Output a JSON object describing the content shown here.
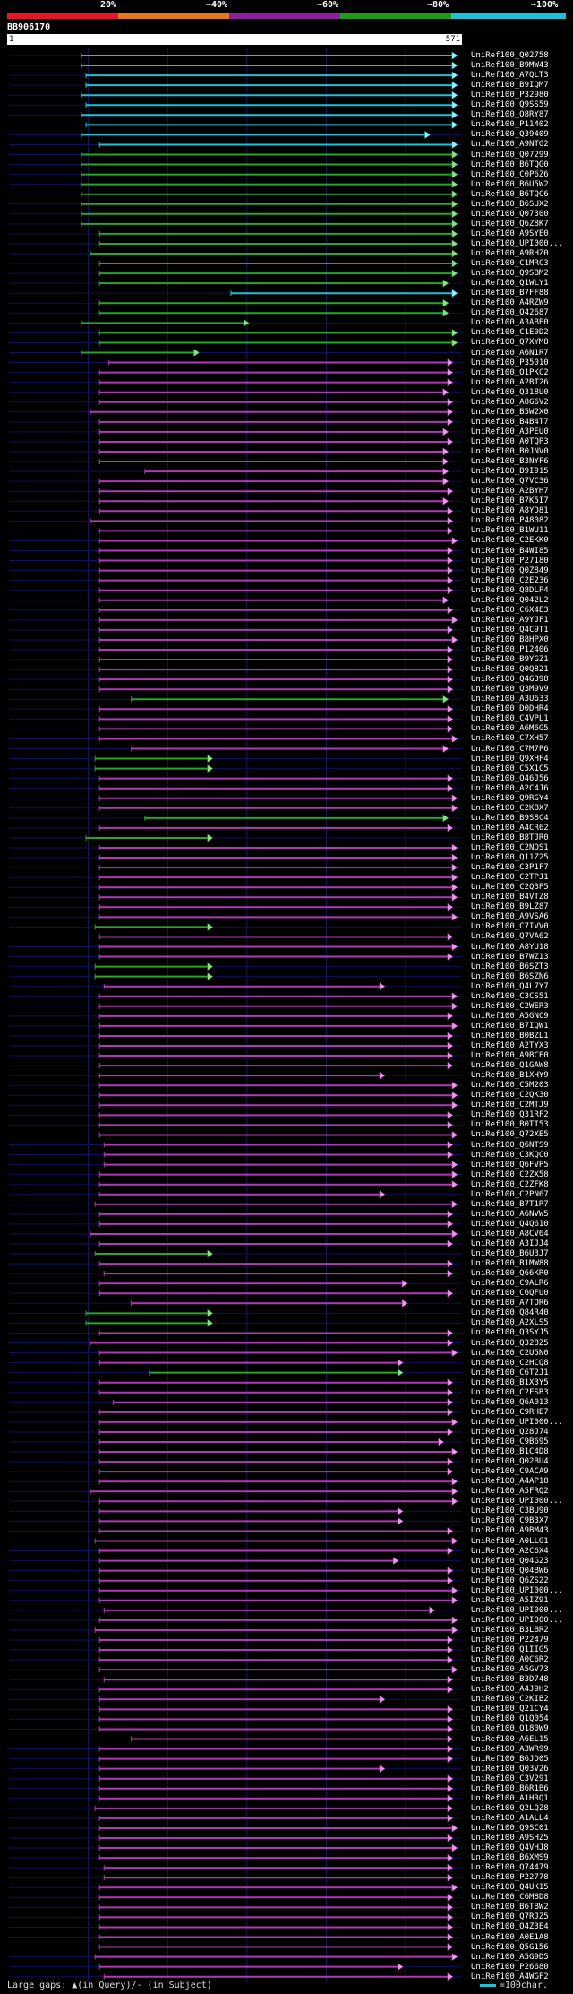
{
  "legend": [
    {
      "label": "20%",
      "color": "#e8152a"
    },
    {
      "label": "~40%",
      "color": "#e0791a"
    },
    {
      "label": "~60%",
      "color": "#8e1e9c"
    },
    {
      "label": "~80%",
      "color": "#1f9a1a"
    },
    {
      "label": "~100%",
      "color": "#1ec2d6"
    }
  ],
  "query": {
    "id": "BB906170",
    "start": "1",
    "end": "571",
    "length": 571
  },
  "colors": {
    "cyan": "#1ec2d6",
    "green": "#2aa52a",
    "purple": "#b03ab5",
    "pink": "#e79be8",
    "lightgreen": "#8ee08e",
    "lightcyan": "#9bf0fa"
  },
  "footer": {
    "gaps": "Large gaps: ▲(in Query)/- (in Subject)",
    "scale": "=100char."
  },
  "hits": [
    {
      "id": "UniRef100_Q02758",
      "c": "c",
      "s": 0.16,
      "e": 0.99
    },
    {
      "id": "UniRef100_B9MW43",
      "c": "c",
      "s": 0.16,
      "e": 0.99
    },
    {
      "id": "UniRef100_A7QLT3",
      "c": "c",
      "s": 0.17,
      "e": 0.99
    },
    {
      "id": "UniRef100_B9IQM7",
      "c": "c",
      "s": 0.17,
      "e": 0.99
    },
    {
      "id": "UniRef100_P32980",
      "c": "c",
      "s": 0.16,
      "e": 0.99
    },
    {
      "id": "UniRef100_Q9SS59",
      "c": "c",
      "s": 0.17,
      "e": 0.99
    },
    {
      "id": "UniRef100_Q8RY87",
      "c": "c",
      "s": 0.16,
      "e": 0.99
    },
    {
      "id": "UniRef100_P11402",
      "c": "c",
      "s": 0.17,
      "e": 0.99
    },
    {
      "id": "UniRef100_Q39409",
      "c": "c",
      "s": 0.16,
      "e": 0.93
    },
    {
      "id": "UniRef100_A9NTG2",
      "c": "c",
      "s": 0.2,
      "e": 0.99
    },
    {
      "id": "UniRef100_Q07299",
      "c": "g",
      "s": 0.16,
      "e": 0.99
    },
    {
      "id": "UniRef100_B6TQG0",
      "c": "g",
      "s": 0.16,
      "e": 0.99
    },
    {
      "id": "UniRef100_C0P6Z6",
      "c": "g",
      "s": 0.16,
      "e": 0.99
    },
    {
      "id": "UniRef100_B6U5W2",
      "c": "g",
      "s": 0.16,
      "e": 0.99
    },
    {
      "id": "UniRef100_B6TQC6",
      "c": "g",
      "s": 0.16,
      "e": 0.99
    },
    {
      "id": "UniRef100_B6SUX2",
      "c": "g",
      "s": 0.16,
      "e": 0.99
    },
    {
      "id": "UniRef100_Q07300",
      "c": "g",
      "s": 0.16,
      "e": 0.99
    },
    {
      "id": "UniRef100_Q6Z8K7",
      "c": "g",
      "s": 0.16,
      "e": 0.99
    },
    {
      "id": "UniRef100_A9SYE0",
      "c": "g",
      "s": 0.2,
      "e": 0.99
    },
    {
      "id": "UniRef100_UPI000...",
      "c": "g",
      "s": 0.2,
      "e": 0.99
    },
    {
      "id": "UniRef100_A9RHZ0",
      "c": "g",
      "s": 0.18,
      "e": 0.99
    },
    {
      "id": "UniRef100_C1MRC3",
      "c": "g",
      "s": 0.2,
      "e": 0.99
    },
    {
      "id": "UniRef100_Q9SBM2",
      "c": "g",
      "s": 0.2,
      "e": 0.99
    },
    {
      "id": "UniRef100_Q1WLY1",
      "c": "g",
      "s": 0.2,
      "e": 0.97
    },
    {
      "id": "UniRef100_B7FF88",
      "c": "c",
      "s": 0.49,
      "e": 0.99
    },
    {
      "id": "UniRef100_A4RZW9",
      "c": "g",
      "s": 0.2,
      "e": 0.97
    },
    {
      "id": "UniRef100_Q42687",
      "c": "g",
      "s": 0.2,
      "e": 0.97
    },
    {
      "id": "UniRef100_A3ABE0",
      "c": "g",
      "s": 0.16,
      "e": 0.53
    },
    {
      "id": "UniRef100_C1E0D2",
      "c": "g",
      "s": 0.2,
      "e": 0.99
    },
    {
      "id": "UniRef100_Q7XYM8",
      "c": "g",
      "s": 0.2,
      "e": 0.99
    },
    {
      "id": "UniRef100_A6N1R7",
      "c": "g",
      "s": 0.16,
      "e": 0.42
    },
    {
      "id": "UniRef100_P35010",
      "c": "p",
      "s": 0.22,
      "e": 0.98
    },
    {
      "id": "UniRef100_Q1PKC2",
      "c": "p",
      "s": 0.2,
      "e": 0.98
    },
    {
      "id": "UniRef100_A2BT26",
      "c": "p",
      "s": 0.2,
      "e": 0.98
    },
    {
      "id": "UniRef100_Q318U0",
      "c": "p",
      "s": 0.2,
      "e": 0.97
    },
    {
      "id": "UniRef100_A8G6V2",
      "c": "p",
      "s": 0.2,
      "e": 0.98
    },
    {
      "id": "UniRef100_B5W2X0",
      "c": "p",
      "s": 0.18,
      "e": 0.98
    },
    {
      "id": "UniRef100_B4B4T7",
      "c": "p",
      "s": 0.2,
      "e": 0.98
    },
    {
      "id": "UniRef100_A3PEU0",
      "c": "p",
      "s": 0.2,
      "e": 0.97
    },
    {
      "id": "UniRef100_A0TQP3",
      "c": "p",
      "s": 0.2,
      "e": 0.98
    },
    {
      "id": "UniRef100_B0JNV0",
      "c": "p",
      "s": 0.2,
      "e": 0.97
    },
    {
      "id": "UniRef100_B3NYF6",
      "c": "p",
      "s": 0.2,
      "e": 0.97
    },
    {
      "id": "UniRef100_B9I915",
      "c": "p",
      "s": 0.3,
      "e": 0.97
    },
    {
      "id": "UniRef100_Q7VC36",
      "c": "p",
      "s": 0.2,
      "e": 0.97
    },
    {
      "id": "UniRef100_A2BYH7",
      "c": "p",
      "s": 0.2,
      "e": 0.98
    },
    {
      "id": "UniRef100_B7K5I7",
      "c": "p",
      "s": 0.2,
      "e": 0.97
    },
    {
      "id": "UniRef100_A8YD81",
      "c": "p",
      "s": 0.2,
      "e": 0.98
    },
    {
      "id": "UniRef100_P48082",
      "c": "p",
      "s": 0.18,
      "e": 0.98
    },
    {
      "id": "UniRef100_B1WU11",
      "c": "p",
      "s": 0.2,
      "e": 0.98
    },
    {
      "id": "UniRef100_C2EKK0",
      "c": "p",
      "s": 0.2,
      "e": 0.99
    },
    {
      "id": "UniRef100_B4WI85",
      "c": "p",
      "s": 0.2,
      "e": 0.98
    },
    {
      "id": "UniRef100_P27180",
      "c": "p",
      "s": 0.2,
      "e": 0.98
    },
    {
      "id": "UniRef100_Q0Z849",
      "c": "p",
      "s": 0.2,
      "e": 0.98
    },
    {
      "id": "UniRef100_C2E236",
      "c": "p",
      "s": 0.2,
      "e": 0.98
    },
    {
      "id": "UniRef100_Q8DLP4",
      "c": "p",
      "s": 0.2,
      "e": 0.98
    },
    {
      "id": "UniRef100_Q042L2",
      "c": "p",
      "s": 0.2,
      "e": 0.97
    },
    {
      "id": "UniRef100_C6X4E3",
      "c": "p",
      "s": 0.2,
      "e": 0.98
    },
    {
      "id": "UniRef100_A9YJF1",
      "c": "p",
      "s": 0.2,
      "e": 0.99
    },
    {
      "id": "UniRef100_Q4C9T1",
      "c": "p",
      "s": 0.2,
      "e": 0.98
    },
    {
      "id": "UniRef100_B8HPX0",
      "c": "p",
      "s": 0.2,
      "e": 0.99
    },
    {
      "id": "UniRef100_P12406",
      "c": "p",
      "s": 0.2,
      "e": 0.98
    },
    {
      "id": "UniRef100_B9YGZ1",
      "c": "p",
      "s": 0.2,
      "e": 0.98
    },
    {
      "id": "UniRef100_Q0Q821",
      "c": "p",
      "s": 0.2,
      "e": 0.98
    },
    {
      "id": "UniRef100_Q4G398",
      "c": "p",
      "s": 0.2,
      "e": 0.98
    },
    {
      "id": "UniRef100_Q3M9V9",
      "c": "p",
      "s": 0.2,
      "e": 0.98
    },
    {
      "id": "UniRef100_A3U633",
      "c": "g",
      "s": 0.27,
      "e": 0.97
    },
    {
      "id": "UniRef100_D0DHR4",
      "c": "p",
      "s": 0.2,
      "e": 0.98
    },
    {
      "id": "UniRef100_C4VPL1",
      "c": "p",
      "s": 0.2,
      "e": 0.98
    },
    {
      "id": "UniRef100_A6M6G5",
      "c": "p",
      "s": 0.2,
      "e": 0.98
    },
    {
      "id": "UniRef100_C7XH57",
      "c": "p",
      "s": 0.2,
      "e": 0.99
    },
    {
      "id": "UniRef100_C7M7P6",
      "c": "p",
      "s": 0.27,
      "e": 0.97
    },
    {
      "id": "UniRef100_Q9XHF4",
      "c": "g",
      "s": 0.19,
      "e": 0.45
    },
    {
      "id": "UniRef100_C5X1C5",
      "c": "g",
      "s": 0.19,
      "e": 0.45
    },
    {
      "id": "UniRef100_Q46J56",
      "c": "p",
      "s": 0.2,
      "e": 0.98
    },
    {
      "id": "UniRef100_A2C4J6",
      "c": "p",
      "s": 0.2,
      "e": 0.98
    },
    {
      "id": "UniRef100_Q9RGY4",
      "c": "p",
      "s": 0.2,
      "e": 0.99
    },
    {
      "id": "UniRef100_C2KBX7",
      "c": "p",
      "s": 0.2,
      "e": 0.99
    },
    {
      "id": "UniRef100_B9S8C4",
      "c": "g",
      "s": 0.3,
      "e": 0.97
    },
    {
      "id": "UniRef100_A4CR62",
      "c": "p",
      "s": 0.2,
      "e": 0.98
    },
    {
      "id": "UniRef100_B8TJR0",
      "c": "g",
      "s": 0.17,
      "e": 0.45
    },
    {
      "id": "UniRef100_C2NQS1",
      "c": "p",
      "s": 0.2,
      "e": 0.99
    },
    {
      "id": "UniRef100_Q11Z25",
      "c": "p",
      "s": 0.2,
      "e": 0.99
    },
    {
      "id": "UniRef100_C3P1F7",
      "c": "p",
      "s": 0.2,
      "e": 0.99
    },
    {
      "id": "UniRef100_C2TPJ1",
      "c": "p",
      "s": 0.2,
      "e": 0.99
    },
    {
      "id": "UniRef100_C2Q3P5",
      "c": "p",
      "s": 0.2,
      "e": 0.99
    },
    {
      "id": "UniRef100_B4VTZ8",
      "c": "p",
      "s": 0.2,
      "e": 0.99
    },
    {
      "id": "UniRef100_B9LZ87",
      "c": "p",
      "s": 0.2,
      "e": 0.98
    },
    {
      "id": "UniRef100_A9VSA6",
      "c": "p",
      "s": 0.2,
      "e": 0.99
    },
    {
      "id": "UniRef100_C7IVV0",
      "c": "g",
      "s": 0.19,
      "e": 0.45
    },
    {
      "id": "UniRef100_Q7VA62",
      "c": "p",
      "s": 0.2,
      "e": 0.98
    },
    {
      "id": "UniRef100_A8YU18",
      "c": "p",
      "s": 0.2,
      "e": 0.99
    },
    {
      "id": "UniRef100_B7WZ13",
      "c": "p",
      "s": 0.2,
      "e": 0.98
    },
    {
      "id": "UniRef100_B6SZT3",
      "c": "g",
      "s": 0.19,
      "e": 0.45
    },
    {
      "id": "UniRef100_B6SZN6",
      "c": "g",
      "s": 0.19,
      "e": 0.45
    },
    {
      "id": "UniRef100_Q4L7Y7",
      "c": "p",
      "s": 0.21,
      "e": 0.83
    },
    {
      "id": "UniRef100_C3CS51",
      "c": "p",
      "s": 0.2,
      "e": 0.99
    },
    {
      "id": "UniRef100_C2WER3",
      "c": "p",
      "s": 0.2,
      "e": 0.99
    },
    {
      "id": "UniRef100_A5GNC9",
      "c": "p",
      "s": 0.2,
      "e": 0.98
    },
    {
      "id": "UniRef100_B7IQW1",
      "c": "p",
      "s": 0.2,
      "e": 0.99
    },
    {
      "id": "UniRef100_B0BZL1",
      "c": "p",
      "s": 0.2,
      "e": 0.98
    },
    {
      "id": "UniRef100_A2TYX3",
      "c": "p",
      "s": 0.2,
      "e": 0.98
    },
    {
      "id": "UniRef100_A9BCE0",
      "c": "p",
      "s": 0.2,
      "e": 0.98
    },
    {
      "id": "UniRef100_Q1GAW8",
      "c": "p",
      "s": 0.2,
      "e": 0.98
    },
    {
      "id": "UniRef100_B1XHY9",
      "c": "p",
      "s": 0.2,
      "e": 0.83
    },
    {
      "id": "UniRef100_C5M203",
      "c": "p",
      "s": 0.2,
      "e": 0.99
    },
    {
      "id": "UniRef100_C2QK30",
      "c": "p",
      "s": 0.2,
      "e": 0.99
    },
    {
      "id": "UniRef100_C2MTJ9",
      "c": "p",
      "s": 0.2,
      "e": 0.99
    },
    {
      "id": "UniRef100_Q31RF2",
      "c": "p",
      "s": 0.2,
      "e": 0.98
    },
    {
      "id": "UniRef100_B0TI53",
      "c": "p",
      "s": 0.2,
      "e": 0.98
    },
    {
      "id": "UniRef100_Q72XE5",
      "c": "p",
      "s": 0.2,
      "e": 0.99
    },
    {
      "id": "UniRef100_Q6NTS9",
      "c": "p",
      "s": 0.21,
      "e": 0.98
    },
    {
      "id": "UniRef100_C3KQC0",
      "c": "p",
      "s": 0.21,
      "e": 0.98
    },
    {
      "id": "UniRef100_Q6FVP5",
      "c": "p",
      "s": 0.21,
      "e": 0.99
    },
    {
      "id": "UniRef100_C2ZX58",
      "c": "p",
      "s": 0.2,
      "e": 0.99
    },
    {
      "id": "UniRef100_C2ZFK8",
      "c": "p",
      "s": 0.2,
      "e": 0.99
    },
    {
      "id": "UniRef100_C2PN67",
      "c": "p",
      "s": 0.2,
      "e": 0.83
    },
    {
      "id": "UniRef100_B7T1R7",
      "c": "p",
      "s": 0.19,
      "e": 0.99
    },
    {
      "id": "UniRef100_A6NVW5",
      "c": "p",
      "s": 0.2,
      "e": 0.98
    },
    {
      "id": "UniRef100_Q4Q610",
      "c": "p",
      "s": 0.2,
      "e": 0.98
    },
    {
      "id": "UniRef100_A8CV64",
      "c": "p",
      "s": 0.18,
      "e": 0.99
    },
    {
      "id": "UniRef100_A3IJJ4",
      "c": "p",
      "s": 0.2,
      "e": 0.98
    },
    {
      "id": "UniRef100_B6U3J7",
      "c": "g",
      "s": 0.19,
      "e": 0.45
    },
    {
      "id": "UniRef100_B1MW88",
      "c": "p",
      "s": 0.2,
      "e": 0.98
    },
    {
      "id": "UniRef100_Q66KR0",
      "c": "p",
      "s": 0.21,
      "e": 0.98
    },
    {
      "id": "UniRef100_C9ALR6",
      "c": "p",
      "s": 0.2,
      "e": 0.88
    },
    {
      "id": "UniRef100_C6QFU0",
      "c": "p",
      "s": 0.2,
      "e": 0.98
    },
    {
      "id": "UniRef100_A7TOR6",
      "c": "p",
      "s": 0.27,
      "e": 0.88
    },
    {
      "id": "UniRef100_Q84R40",
      "c": "g",
      "s": 0.17,
      "e": 0.45
    },
    {
      "id": "UniRef100_A2XLS5",
      "c": "g",
      "s": 0.17,
      "e": 0.45
    },
    {
      "id": "UniRef100_Q3SYJ5",
      "c": "p",
      "s": 0.2,
      "e": 0.98
    },
    {
      "id": "UniRef100_Q328Z5",
      "c": "p",
      "s": 0.18,
      "e": 0.98
    },
    {
      "id": "UniRef100_C2U5N0",
      "c": "p",
      "s": 0.2,
      "e": 0.99
    },
    {
      "id": "UniRef100_C2HCQ8",
      "c": "p",
      "s": 0.2,
      "e": 0.87
    },
    {
      "id": "UniRef100_C6T2J1",
      "c": "g",
      "s": 0.31,
      "e": 0.87
    },
    {
      "id": "UniRef100_B1X3Y5",
      "c": "p",
      "s": 0.2,
      "e": 0.98
    },
    {
      "id": "UniRef100_C2FSB3",
      "c": "p",
      "s": 0.2,
      "e": 0.98
    },
    {
      "id": "UniRef100_Q6A013",
      "c": "p",
      "s": 0.23,
      "e": 0.98
    },
    {
      "id": "UniRef100_C9RHE7",
      "c": "p",
      "s": 0.2,
      "e": 0.98
    },
    {
      "id": "UniRef100_UPI000...",
      "c": "p",
      "s": 0.2,
      "e": 0.99
    },
    {
      "id": "UniRef100_Q28J74",
      "c": "p",
      "s": 0.2,
      "e": 0.98
    },
    {
      "id": "UniRef100_C9B695",
      "c": "p",
      "s": 0.2,
      "e": 0.96
    },
    {
      "id": "UniRef100_B1C4D8",
      "c": "p",
      "s": 0.2,
      "e": 0.99
    },
    {
      "id": "UniRef100_Q02BU4",
      "c": "p",
      "s": 0.2,
      "e": 0.98
    },
    {
      "id": "UniRef100_C9ACA9",
      "c": "p",
      "s": 0.2,
      "e": 0.98
    },
    {
      "id": "UniRef100_A4AP18",
      "c": "p",
      "s": 0.2,
      "e": 0.99
    },
    {
      "id": "UniRef100_A5FRQ2",
      "c": "p",
      "s": 0.18,
      "e": 0.99
    },
    {
      "id": "UniRef100_UPI000...",
      "c": "p",
      "s": 0.2,
      "e": 0.99
    },
    {
      "id": "UniRef100_C3BU90",
      "c": "p",
      "s": 0.2,
      "e": 0.87
    },
    {
      "id": "UniRef100_C9B3X7",
      "c": "p",
      "s": 0.2,
      "e": 0.87
    },
    {
      "id": "UniRef100_A9BM43",
      "c": "p",
      "s": 0.2,
      "e": 0.98
    },
    {
      "id": "UniRef100_A0LLG1",
      "c": "p",
      "s": 0.19,
      "e": 0.99
    },
    {
      "id": "UniRef100_A2C6X4",
      "c": "p",
      "s": 0.2,
      "e": 0.98
    },
    {
      "id": "UniRef100_Q04G23",
      "c": "p",
      "s": 0.2,
      "e": 0.86
    },
    {
      "id": "UniRef100_Q04BW6",
      "c": "p",
      "s": 0.2,
      "e": 0.98
    },
    {
      "id": "UniRef100_Q6ZS22",
      "c": "p",
      "s": 0.2,
      "e": 0.98
    },
    {
      "id": "UniRef100_UPI000...",
      "c": "p",
      "s": 0.2,
      "e": 0.99
    },
    {
      "id": "UniRef100_A5IZ91",
      "c": "p",
      "s": 0.2,
      "e": 0.99
    },
    {
      "id": "UniRef100_UPI000...",
      "c": "p",
      "s": 0.21,
      "e": 0.94
    },
    {
      "id": "UniRef100_UPI000...",
      "c": "p",
      "s": 0.2,
      "e": 0.99
    },
    {
      "id": "UniRef100_B3LBR2",
      "c": "p",
      "s": 0.19,
      "e": 0.99
    },
    {
      "id": "UniRef100_P22479",
      "c": "p",
      "s": 0.2,
      "e": 0.98
    },
    {
      "id": "UniRef100_Q1IIG5",
      "c": "p",
      "s": 0.2,
      "e": 0.98
    },
    {
      "id": "UniRef100_A0C6R2",
      "c": "p",
      "s": 0.2,
      "e": 0.98
    },
    {
      "id": "UniRef100_A5GV73",
      "c": "p",
      "s": 0.2,
      "e": 0.99
    },
    {
      "id": "UniRef100_B3D748",
      "c": "p",
      "s": 0.21,
      "e": 0.98
    },
    {
      "id": "UniRef100_A4J9H2",
      "c": "p",
      "s": 0.2,
      "e": 0.98
    },
    {
      "id": "UniRef100_C2KIB2",
      "c": "p",
      "s": 0.2,
      "e": 0.83
    },
    {
      "id": "UniRef100_Q21CY4",
      "c": "p",
      "s": 0.2,
      "e": 0.98
    },
    {
      "id": "UniRef100_Q1Q054",
      "c": "p",
      "s": 0.2,
      "e": 0.98
    },
    {
      "id": "UniRef100_Q180W9",
      "c": "p",
      "s": 0.2,
      "e": 0.98
    },
    {
      "id": "UniRef100_A6EL15",
      "c": "p",
      "s": 0.27,
      "e": 0.98
    },
    {
      "id": "UniRef100_A3WR99",
      "c": "p",
      "s": 0.2,
      "e": 0.98
    },
    {
      "id": "UniRef100_B6JD05",
      "c": "p",
      "s": 0.2,
      "e": 0.98
    },
    {
      "id": "UniRef100_Q03V26",
      "c": "p",
      "s": 0.2,
      "e": 0.83
    },
    {
      "id": "UniRef100_C3V291",
      "c": "p",
      "s": 0.2,
      "e": 0.98
    },
    {
      "id": "UniRef100_B6R1B6",
      "c": "p",
      "s": 0.2,
      "e": 0.98
    },
    {
      "id": "UniRef100_A1HRQ1",
      "c": "p",
      "s": 0.2,
      "e": 0.98
    },
    {
      "id": "UniRef100_Q2LQZ8",
      "c": "p",
      "s": 0.19,
      "e": 0.98
    },
    {
      "id": "UniRef100_A1ALL4",
      "c": "p",
      "s": 0.2,
      "e": 0.98
    },
    {
      "id": "UniRef100_Q9SC01",
      "c": "p",
      "s": 0.2,
      "e": 0.99
    },
    {
      "id": "UniRef100_A9SHZ5",
      "c": "p",
      "s": 0.2,
      "e": 0.98
    },
    {
      "id": "UniRef100_Q4VHJ8",
      "c": "p",
      "s": 0.2,
      "e": 0.99
    },
    {
      "id": "UniRef100_B6XMS9",
      "c": "p",
      "s": 0.2,
      "e": 0.98
    },
    {
      "id": "UniRef100_Q74479",
      "c": "p",
      "s": 0.21,
      "e": 0.98
    },
    {
      "id": "UniRef100_P22778",
      "c": "p",
      "s": 0.21,
      "e": 0.98
    },
    {
      "id": "UniRef100_Q4UK15",
      "c": "p",
      "s": 0.2,
      "e": 0.99
    },
    {
      "id": "UniRef100_C6M8D8",
      "c": "p",
      "s": 0.2,
      "e": 0.98
    },
    {
      "id": "UniRef100_B6TBW2",
      "c": "p",
      "s": 0.2,
      "e": 0.98
    },
    {
      "id": "UniRef100_Q7RJZ5",
      "c": "p",
      "s": 0.2,
      "e": 0.98
    },
    {
      "id": "UniRef100_Q4Z3E4",
      "c": "p",
      "s": 0.2,
      "e": 0.98
    },
    {
      "id": "UniRef100_A0E1A8",
      "c": "p",
      "s": 0.2,
      "e": 0.98
    },
    {
      "id": "UniRef100_Q5G156",
      "c": "p",
      "s": 0.2,
      "e": 0.98
    },
    {
      "id": "UniRef100_A5G9D5",
      "c": "p",
      "s": 0.19,
      "e": 0.99
    },
    {
      "id": "UniRef100_P26680",
      "c": "p",
      "s": 0.2,
      "e": 0.87
    },
    {
      "id": "UniRef100_A4WGF2",
      "c": "p",
      "s": 0.21,
      "e": 0.98
    }
  ]
}
